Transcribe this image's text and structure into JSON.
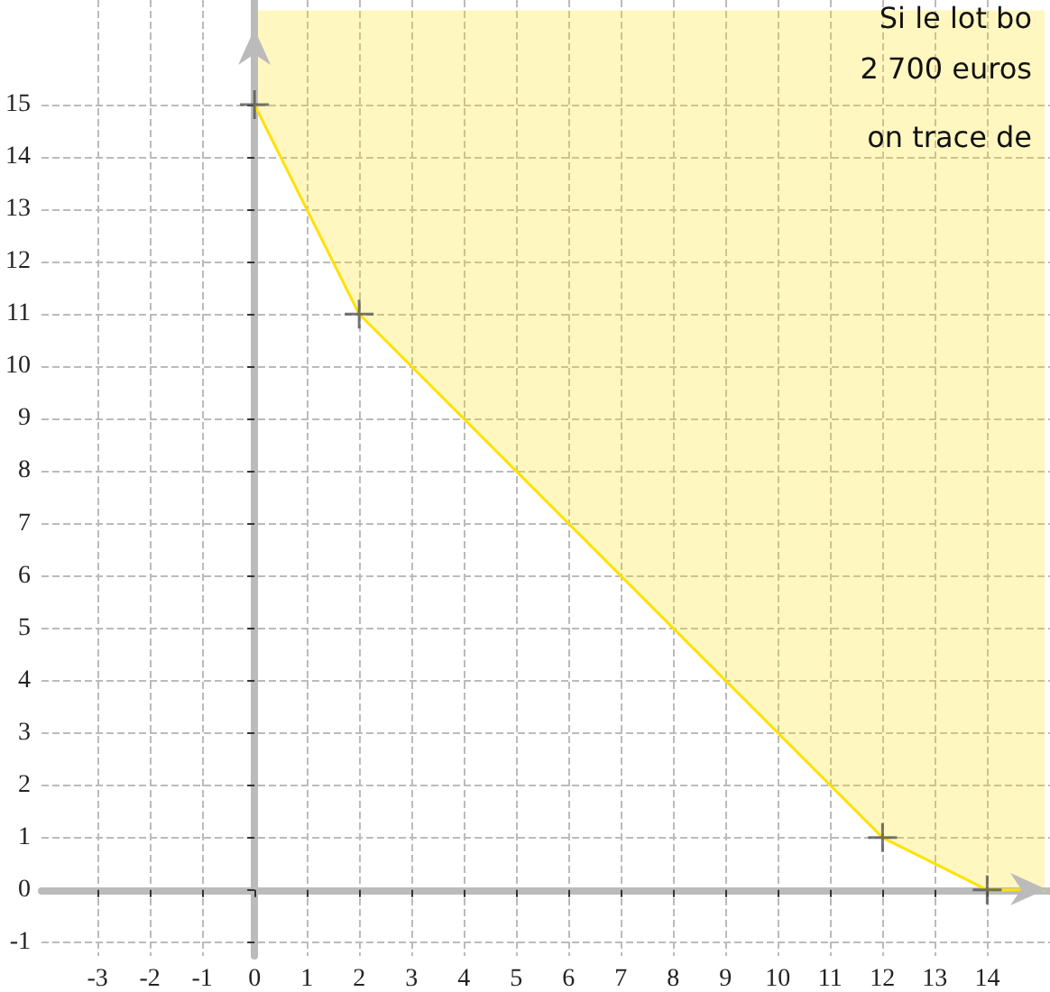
{
  "chart_data": {
    "type": "line",
    "series": [
      {
        "color": "#ffe100",
        "x": [
          0,
          2,
          12,
          14,
          15.1
        ],
        "values": [
          15,
          11,
          1,
          0,
          0
        ],
        "lower": [
          15,
          11,
          1,
          0,
          0
        ],
        "upper": [
          16.8,
          16.8,
          16.8,
          16.8,
          16.8
        ]
      },
      {
        "type": "scatter",
        "color": "#555555",
        "marker": "cross",
        "x": [
          0,
          2,
          12,
          14
        ],
        "values": [
          15,
          11,
          1,
          0
        ]
      }
    ],
    "xlim": [
      -4.07,
      15.2
    ],
    "ylim": [
      -1.26,
      17
    ],
    "xticks": [
      -3,
      -2,
      -1,
      0,
      1,
      2,
      3,
      4,
      5,
      6,
      7,
      8,
      9,
      10,
      11,
      12,
      13,
      14
    ],
    "yticks": [
      -1,
      0,
      1,
      2,
      3,
      4,
      5,
      6,
      7,
      8,
      9,
      10,
      11,
      12,
      13,
      14,
      15
    ],
    "grid": true,
    "line_style": "solid",
    "marker": "none",
    "annotations": [
      "Si le lot bo",
      "2 700 euros",
      "on trace de"
    ]
  }
}
